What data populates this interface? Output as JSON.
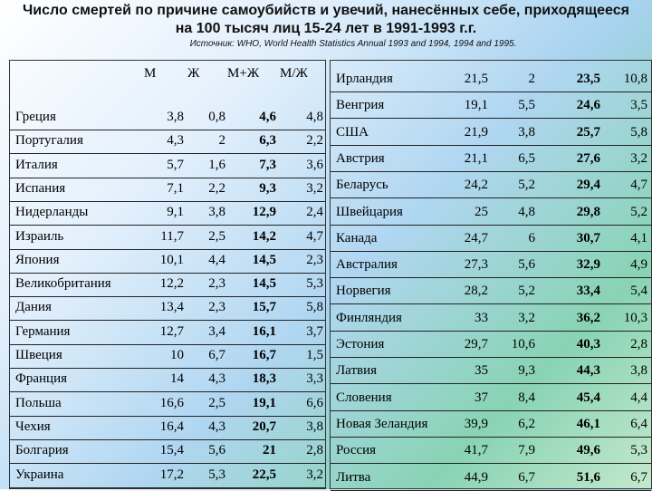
{
  "title": "Число смертей по причине самоубийств и увечий, нанесённых себе, приходящееся на 100 тысяч лиц 15-24 лет в 1991-1993 г.г.",
  "source": "Источник: WHO, World Health Statistics Annual 1993 and 1994, 1994 and 1995.",
  "headers": {
    "m": "М",
    "f": "Ж",
    "mf": "М+Ж",
    "ratio": "М/Ж"
  },
  "left_rows": [
    {
      "country": "Греция",
      "m": "3,8",
      "f": "0,8",
      "mf": "4,6",
      "ratio": "4,8"
    },
    {
      "country": "Португалия",
      "m": "4,3",
      "f": "2",
      "mf": "6,3",
      "ratio": "2,2"
    },
    {
      "country": "Италия",
      "m": "5,7",
      "f": "1,6",
      "mf": "7,3",
      "ratio": "3,6"
    },
    {
      "country": "Испания",
      "m": "7,1",
      "f": "2,2",
      "mf": "9,3",
      "ratio": "3,2"
    },
    {
      "country": "Нидерланды",
      "m": "9,1",
      "f": "3,8",
      "mf": "12,9",
      "ratio": "2,4"
    },
    {
      "country": "Израиль",
      "m": "11,7",
      "f": "2,5",
      "mf": "14,2",
      "ratio": "4,7"
    },
    {
      "country": "Япония",
      "m": "10,1",
      "f": "4,4",
      "mf": "14,5",
      "ratio": "2,3"
    },
    {
      "country": "Великобритания",
      "m": "12,2",
      "f": "2,3",
      "mf": "14,5",
      "ratio": "5,3"
    },
    {
      "country": "Дания",
      "m": "13,4",
      "f": "2,3",
      "mf": "15,7",
      "ratio": "5,8"
    },
    {
      "country": "Германия",
      "m": "12,7",
      "f": "3,4",
      "mf": "16,1",
      "ratio": "3,7"
    },
    {
      "country": "Швеция",
      "m": "10",
      "f": "6,7",
      "mf": "16,7",
      "ratio": "1,5"
    },
    {
      "country": "Франция",
      "m": "14",
      "f": "4,3",
      "mf": "18,3",
      "ratio": "3,3"
    },
    {
      "country": "Польша",
      "m": "16,6",
      "f": "2,5",
      "mf": "19,1",
      "ratio": "6,6"
    },
    {
      "country": "Чехия",
      "m": "16,4",
      "f": "4,3",
      "mf": "20,7",
      "ratio": "3,8"
    },
    {
      "country": "Болгария",
      "m": "15,4",
      "f": "5,6",
      "mf": "21",
      "ratio": "2,8"
    },
    {
      "country": "Украина",
      "m": "17,2",
      "f": "5,3",
      "mf": "22,5",
      "ratio": "3,2"
    }
  ],
  "right_rows": [
    {
      "country": "Ирландия",
      "m": "21,5",
      "f": "2",
      "mf": "23,5",
      "ratio": "10,8"
    },
    {
      "country": "Венгрия",
      "m": "19,1",
      "f": "5,5",
      "mf": "24,6",
      "ratio": "3,5"
    },
    {
      "country": "США",
      "m": "21,9",
      "f": "3,8",
      "mf": "25,7",
      "ratio": "5,8"
    },
    {
      "country": "Австрия",
      "m": "21,1",
      "f": "6,5",
      "mf": "27,6",
      "ratio": "3,2"
    },
    {
      "country": "Беларусь",
      "m": "24,2",
      "f": "5,2",
      "mf": "29,4",
      "ratio": "4,7"
    },
    {
      "country": "Швейцария",
      "m": "25",
      "f": "4,8",
      "mf": "29,8",
      "ratio": "5,2"
    },
    {
      "country": "Канада",
      "m": "24,7",
      "f": "6",
      "mf": "30,7",
      "ratio": "4,1"
    },
    {
      "country": "Австралия",
      "m": "27,3",
      "f": "5,6",
      "mf": "32,9",
      "ratio": "4,9"
    },
    {
      "country": "Норвегия",
      "m": "28,2",
      "f": "5,2",
      "mf": "33,4",
      "ratio": "5,4"
    },
    {
      "country": "Финляндия",
      "m": "33",
      "f": "3,2",
      "mf": "36,2",
      "ratio": "10,3"
    },
    {
      "country": "Эстония",
      "m": "29,7",
      "f": "10,6",
      "mf": "40,3",
      "ratio": "2,8"
    },
    {
      "country": "Латвия",
      "m": "35",
      "f": "9,3",
      "mf": "44,3",
      "ratio": "3,8"
    },
    {
      "country": "Словения",
      "m": "37",
      "f": "8,4",
      "mf": "45,4",
      "ratio": "4,4"
    },
    {
      "country": "Новая Зеландия",
      "m": "39,9",
      "f": "6,2",
      "mf": "46,1",
      "ratio": "6,4"
    },
    {
      "country": "Россия",
      "m": "41,7",
      "f": "7,9",
      "mf": "49,6",
      "ratio": "5,3"
    },
    {
      "country": "Литва",
      "m": "44,9",
      "f": "6,7",
      "mf": "51,6",
      "ratio": "6,7"
    }
  ]
}
